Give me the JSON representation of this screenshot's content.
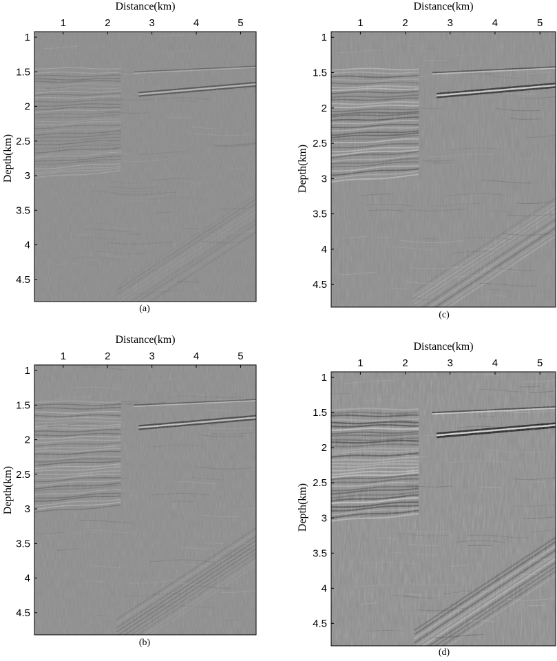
{
  "figure": {
    "panels": [
      {
        "id": "a",
        "caption": "(a)",
        "xlabel": "Distance(km)",
        "ylabel": "Depth(km)",
        "x_ticks": [
          "1",
          "2",
          "3",
          "4",
          "5"
        ],
        "y_ticks": [
          "1",
          "1.5",
          "2",
          "2.5",
          "3",
          "3.5",
          "4",
          "4.5"
        ],
        "x_range": [
          0.35,
          5.35
        ],
        "y_range": [
          0.92,
          4.82
        ],
        "contrast": 0.35,
        "colormap": "gray"
      },
      {
        "id": "b",
        "caption": "(b)",
        "xlabel": "Distance(km)",
        "ylabel": "Depth(km)",
        "x_ticks": [
          "1",
          "2",
          "3",
          "4",
          "5"
        ],
        "y_ticks": [
          "1",
          "1.5",
          "2",
          "2.5",
          "3",
          "3.5",
          "4",
          "4.5"
        ],
        "x_range": [
          0.35,
          5.35
        ],
        "y_range": [
          0.92,
          4.82
        ],
        "contrast": 0.55,
        "colormap": "gray"
      },
      {
        "id": "c",
        "caption": "(c)",
        "xlabel": "Distance(km)",
        "ylabel": "Depth(km)",
        "x_ticks": [
          "1",
          "2",
          "3",
          "4",
          "5"
        ],
        "y_ticks": [
          "1",
          "1.5",
          "2",
          "2.5",
          "3",
          "3.5",
          "4",
          "4.5"
        ],
        "x_range": [
          0.35,
          5.35
        ],
        "y_range": [
          0.92,
          4.82
        ],
        "contrast": 0.75,
        "colormap": "gray"
      },
      {
        "id": "d",
        "caption": "(d)",
        "xlabel": "Distance(km)",
        "ylabel": "Depth(km)",
        "x_ticks": [
          "1",
          "2",
          "3",
          "4",
          "5"
        ],
        "y_ticks": [
          "1",
          "1.5",
          "2",
          "2.5",
          "3",
          "3.5",
          "4",
          "4.5"
        ],
        "x_range": [
          0.35,
          5.35
        ],
        "y_range": [
          0.92,
          4.82
        ],
        "contrast": 1.0,
        "colormap": "gray"
      }
    ]
  }
}
